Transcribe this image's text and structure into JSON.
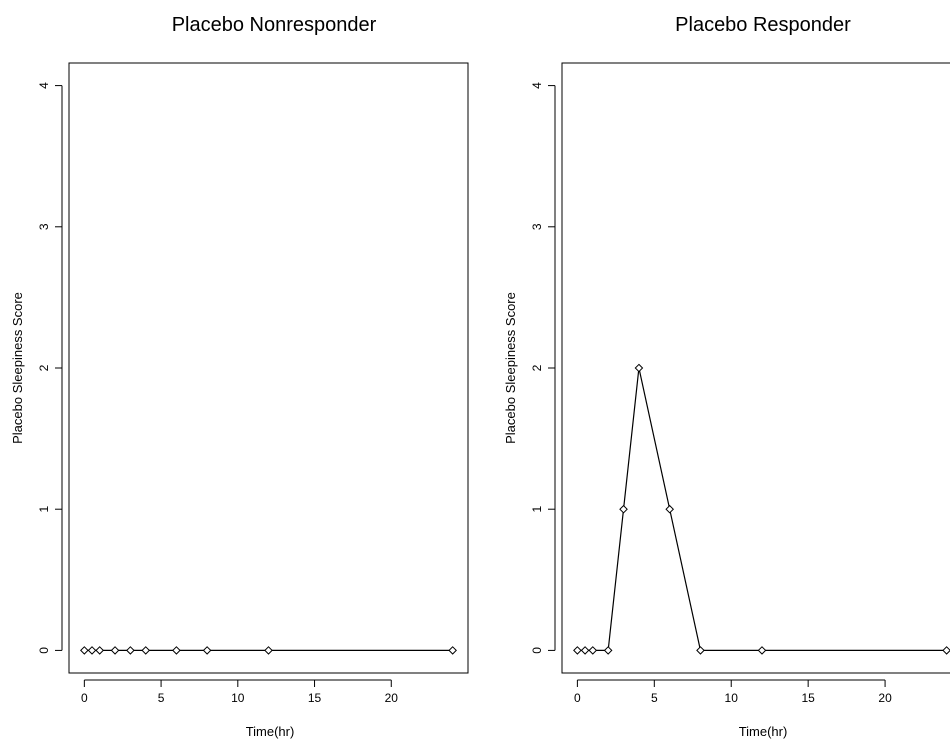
{
  "chart_data": [
    {
      "type": "line",
      "title": "Placebo Nonresponder",
      "xlabel": "Time(hr)",
      "ylabel": "Placebo Sleepiness Score",
      "xlim": [
        -1,
        25
      ],
      "ylim": [
        -0.16,
        4.16
      ],
      "xticks": [
        0,
        5,
        10,
        15,
        20
      ],
      "yticks": [
        0,
        1,
        2,
        3,
        4
      ],
      "grid": false,
      "marker": "diamond",
      "x": [
        0,
        0.5,
        1,
        2,
        3,
        4,
        6,
        8,
        12,
        24
      ],
      "y": [
        0,
        0,
        0,
        0,
        0,
        0,
        0,
        0,
        0,
        0
      ]
    },
    {
      "type": "line",
      "title": "Placebo Responder",
      "xlabel": "Time(hr)",
      "ylabel": "Placebo Sleepiness Score",
      "xlim": [
        -1,
        25
      ],
      "ylim": [
        -0.16,
        4.16
      ],
      "xticks": [
        0,
        5,
        10,
        15,
        20
      ],
      "yticks": [
        0,
        1,
        2,
        3,
        4
      ],
      "grid": false,
      "marker": "diamond",
      "x": [
        0,
        0.5,
        1,
        2,
        3,
        4,
        6,
        8,
        12,
        24
      ],
      "y": [
        0,
        0,
        0,
        0,
        1,
        2,
        1,
        0,
        0,
        0
      ]
    }
  ]
}
